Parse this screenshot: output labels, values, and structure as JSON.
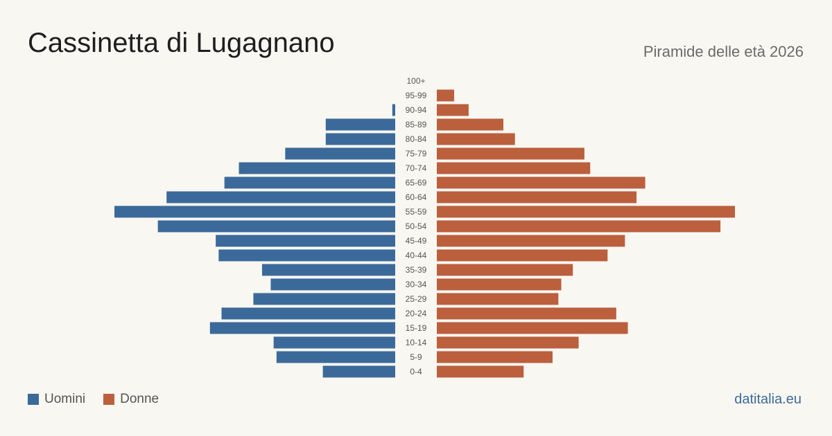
{
  "header": {
    "title": "Cassinetta di Lugagnano",
    "subtitle": "Piramide delle età 2026"
  },
  "legend": {
    "male_label": "Uomini",
    "female_label": "Donne"
  },
  "brand": "datitalia.eu",
  "colors": {
    "male": "#3b6a9a",
    "female": "#bb5f3d",
    "background": "#f9f7f2"
  },
  "chart_data": {
    "type": "bar",
    "orientation": "horizontal-pyramid",
    "categories": [
      "100+",
      "95-99",
      "90-94",
      "85-89",
      "80-84",
      "75-79",
      "70-74",
      "65-69",
      "60-64",
      "55-59",
      "50-54",
      "45-49",
      "40-44",
      "35-39",
      "30-34",
      "25-29",
      "20-24",
      "15-19",
      "10-14",
      "5-9",
      "0-4"
    ],
    "series": [
      {
        "name": "Uomini",
        "values": [
          0,
          0,
          1,
          24,
          24,
          38,
          54,
          59,
          79,
          97,
          82,
          62,
          61,
          46,
          43,
          49,
          60,
          64,
          42,
          41,
          25
        ]
      },
      {
        "name": "Donne",
        "values": [
          0,
          6,
          11,
          23,
          27,
          51,
          53,
          72,
          69,
          103,
          98,
          65,
          59,
          47,
          43,
          42,
          62,
          66,
          49,
          40,
          30
        ]
      }
    ],
    "xlim": [
      0,
      103
    ],
    "grid": false,
    "legend_position": "bottom-left"
  }
}
